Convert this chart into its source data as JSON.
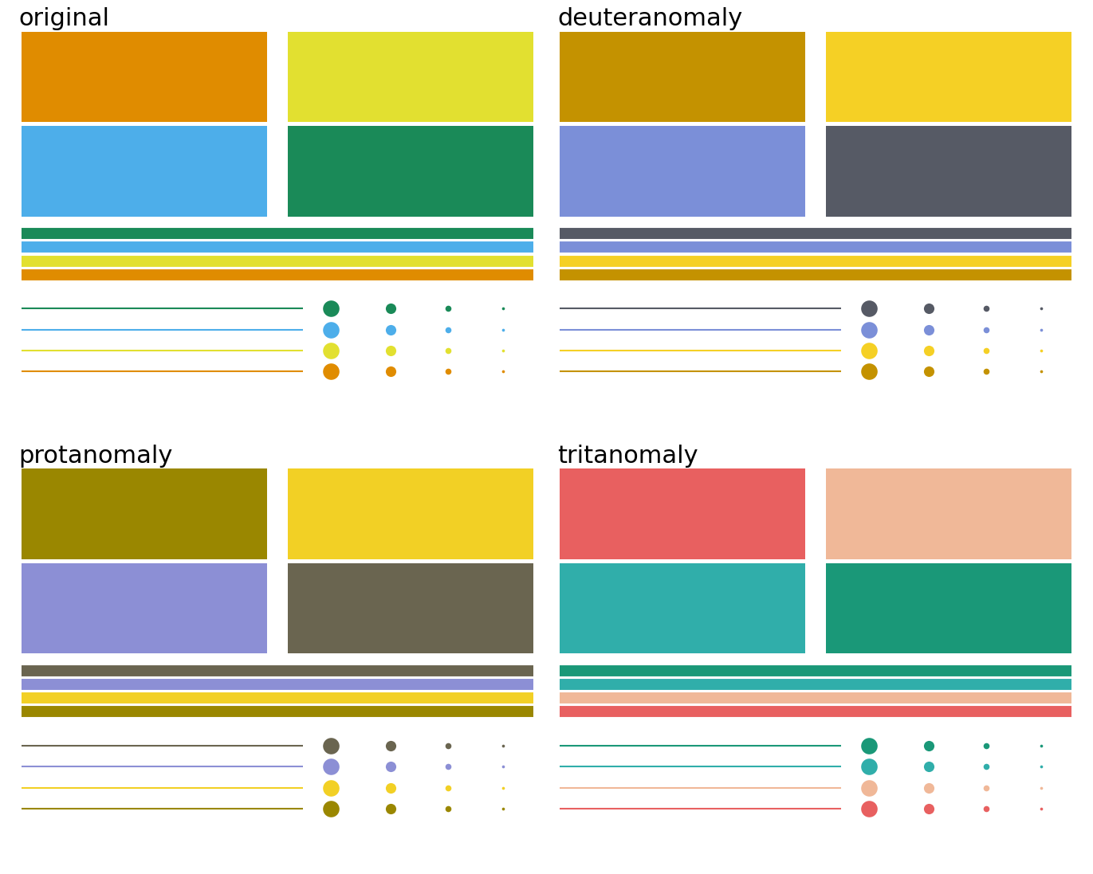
{
  "panel_labels": [
    "original",
    "deuteranomaly",
    "protanomaly",
    "tritanomaly"
  ],
  "panel_colors": [
    [
      "#E08C00",
      "#E2E030",
      "#4DAEEA",
      "#1A8A58"
    ],
    [
      "#C49200",
      "#F5D025",
      "#7B8FD8",
      "#565A65"
    ],
    [
      "#9A8700",
      "#F2D025",
      "#8C8FD5",
      "#6A6550"
    ],
    [
      "#E86060",
      "#F0B898",
      "#30AEAA",
      "#1A9878"
    ]
  ],
  "title_fontsize": 22,
  "background_color": "#ffffff",
  "thick_lw": 10,
  "thin_lw": 1.5,
  "dot_sizes": [
    220,
    90,
    30,
    7
  ]
}
